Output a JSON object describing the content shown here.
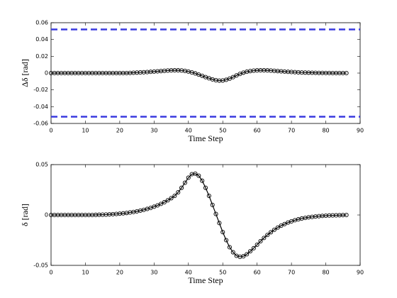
{
  "chart_data": [
    {
      "type": "line",
      "ylabel": "Δδ [rad]",
      "xlabel": "Time Step",
      "x": [
        0,
        1,
        2,
        3,
        4,
        5,
        6,
        7,
        8,
        9,
        10,
        11,
        12,
        13,
        14,
        15,
        16,
        17,
        18,
        19,
        20,
        21,
        22,
        23,
        24,
        25,
        26,
        27,
        28,
        29,
        30,
        31,
        32,
        33,
        34,
        35,
        36,
        37,
        38,
        39,
        40,
        41,
        42,
        43,
        44,
        45,
        46,
        47,
        48,
        49,
        50,
        51,
        52,
        53,
        54,
        55,
        56,
        57,
        58,
        59,
        60,
        61,
        62,
        63,
        64,
        65,
        66,
        67,
        68,
        69,
        70,
        71,
        72,
        73,
        74,
        75,
        76,
        77,
        78,
        79,
        80,
        81,
        82,
        83,
        84,
        85,
        86
      ],
      "values": [
        0,
        0,
        0,
        0,
        0,
        0,
        0,
        0,
        0,
        0,
        0,
        0,
        0,
        0,
        0,
        0,
        0,
        0,
        0,
        0,
        0,
        0,
        0,
        0.0002,
        0.0004,
        0.0006,
        0.0008,
        0.001,
        0.0012,
        0.0015,
        0.0018,
        0.0021,
        0.0024,
        0.0027,
        0.003,
        0.0032,
        0.0033,
        0.0033,
        0.0031,
        0.0026,
        0.0018,
        0.0008,
        -0.0004,
        -0.0018,
        -0.0033,
        -0.0048,
        -0.0062,
        -0.0075,
        -0.0085,
        -0.009,
        -0.0088,
        -0.008,
        -0.0066,
        -0.0048,
        -0.0028,
        -0.001,
        0.0005,
        0.0016,
        0.0024,
        0.0029,
        0.0032,
        0.0033,
        0.0033,
        0.0032,
        0.003,
        0.0027,
        0.0024,
        0.0021,
        0.0018,
        0.0015,
        0.0013,
        0.0011,
        0.0009,
        0.0007,
        0.0006,
        0.0005,
        0.0004,
        0.0003,
        0.0002,
        0.0002,
        0.0001,
        0.0001,
        0,
        0,
        0,
        0,
        0
      ],
      "color": "#000000",
      "marker": "circle",
      "hlines": {
        "values": [
          0.052,
          -0.052
        ],
        "color": "#3a3adf",
        "style": "dashed"
      },
      "xlim": [
        0,
        90
      ],
      "xticks": [
        0,
        10,
        20,
        30,
        40,
        50,
        60,
        70,
        80,
        90
      ],
      "ylim": [
        -0.06,
        0.06
      ],
      "yticks": [
        -0.06,
        -0.04,
        -0.02,
        0,
        0.02,
        0.04,
        0.06
      ]
    },
    {
      "type": "line",
      "ylabel": "δ [rad]",
      "xlabel": "Time Step",
      "x": [
        0,
        1,
        2,
        3,
        4,
        5,
        6,
        7,
        8,
        9,
        10,
        11,
        12,
        13,
        14,
        15,
        16,
        17,
        18,
        19,
        20,
        21,
        22,
        23,
        24,
        25,
        26,
        27,
        28,
        29,
        30,
        31,
        32,
        33,
        34,
        35,
        36,
        37,
        38,
        39,
        40,
        41,
        42,
        43,
        44,
        45,
        46,
        47,
        48,
        49,
        50,
        51,
        52,
        53,
        54,
        55,
        56,
        57,
        58,
        59,
        60,
        61,
        62,
        63,
        64,
        65,
        66,
        67,
        68,
        69,
        70,
        71,
        72,
        73,
        74,
        75,
        76,
        77,
        78,
        79,
        80,
        81,
        82,
        83,
        84,
        85,
        86
      ],
      "values": [
        0,
        0,
        0,
        0,
        0,
        0,
        0,
        0,
        0,
        0,
        0,
        0,
        0,
        0.0001,
        0.0002,
        0.0003,
        0.0004,
        0.0006,
        0.0008,
        0.001,
        0.0013,
        0.0016,
        0.002,
        0.0025,
        0.003,
        0.0036,
        0.0043,
        0.0051,
        0.006,
        0.007,
        0.0082,
        0.0095,
        0.011,
        0.0127,
        0.0146,
        0.0167,
        0.019,
        0.0225,
        0.027,
        0.032,
        0.037,
        0.0405,
        0.041,
        0.039,
        0.034,
        0.027,
        0.019,
        0.01,
        0.001,
        -0.008,
        -0.017,
        -0.025,
        -0.032,
        -0.037,
        -0.0405,
        -0.0415,
        -0.041,
        -0.039,
        -0.036,
        -0.033,
        -0.0295,
        -0.026,
        -0.0228,
        -0.0198,
        -0.0171,
        -0.0147,
        -0.0125,
        -0.0106,
        -0.009,
        -0.0075,
        -0.0063,
        -0.0052,
        -0.0043,
        -0.0035,
        -0.0029,
        -0.0023,
        -0.0019,
        -0.0015,
        -0.0012,
        -0.0009,
        -0.0007,
        -0.0005,
        -0.0004,
        -0.0003,
        -0.0002,
        -0.0001,
        0
      ],
      "color": "#000000",
      "marker": "circle",
      "xlim": [
        0,
        90
      ],
      "xticks": [
        0,
        10,
        20,
        30,
        40,
        50,
        60,
        70,
        80,
        90
      ],
      "ylim": [
        -0.05,
        0.05
      ],
      "yticks": [
        -0.05,
        0,
        0.05
      ]
    }
  ]
}
